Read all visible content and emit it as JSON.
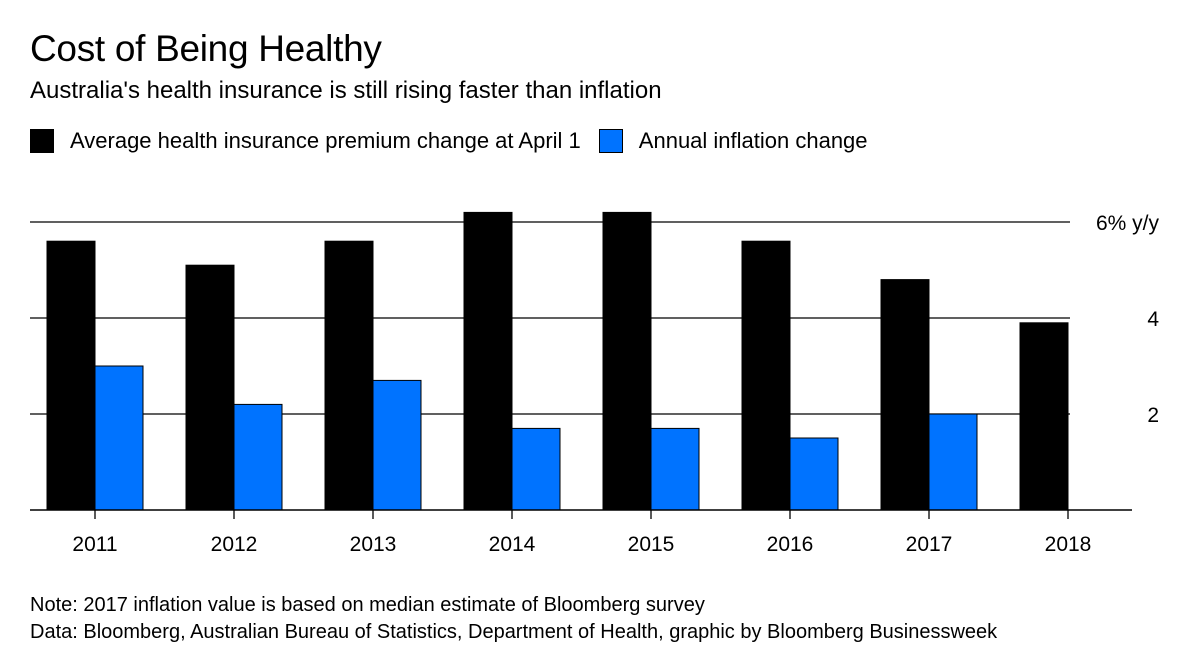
{
  "header": {
    "title": "Cost of Being Healthy",
    "subtitle": "Australia's health insurance is still rising faster than inflation"
  },
  "legend": {
    "items": [
      {
        "label": "Average health insurance premium change at April 1",
        "color": "#000000"
      },
      {
        "label": "Annual inflation change",
        "color": "#0073ff"
      }
    ]
  },
  "footer": {
    "note": "Note: 2017 inflation value is based on median estimate of Bloomberg survey",
    "source": "Data: Bloomberg, Australian Bureau of Statistics, Department of Health, graphic by Bloomberg Businessweek"
  },
  "chart_data": {
    "type": "bar",
    "title": "Cost of Being Healthy",
    "subtitle": "Australia's health insurance is still rising faster than inflation",
    "categories": [
      "2011",
      "2012",
      "2013",
      "2014",
      "2015",
      "2016",
      "2017",
      "2018"
    ],
    "series": [
      {
        "name": "Average health insurance premium change at April 1",
        "color": "#000000",
        "values": [
          5.6,
          5.1,
          5.6,
          6.2,
          6.2,
          5.6,
          4.8,
          3.9
        ]
      },
      {
        "name": "Annual inflation change",
        "color": "#0073ff",
        "values": [
          3.0,
          2.2,
          2.7,
          1.7,
          1.7,
          1.5,
          2.0,
          null
        ]
      }
    ],
    "ylim": [
      0,
      6.5
    ],
    "yticks": [
      {
        "value": 2,
        "label": "2"
      },
      {
        "value": 4,
        "label": "4"
      },
      {
        "value": 6,
        "label": "6% y/y"
      }
    ],
    "grid": true,
    "y_axis_side": "right",
    "legend_placement": "top-left"
  }
}
